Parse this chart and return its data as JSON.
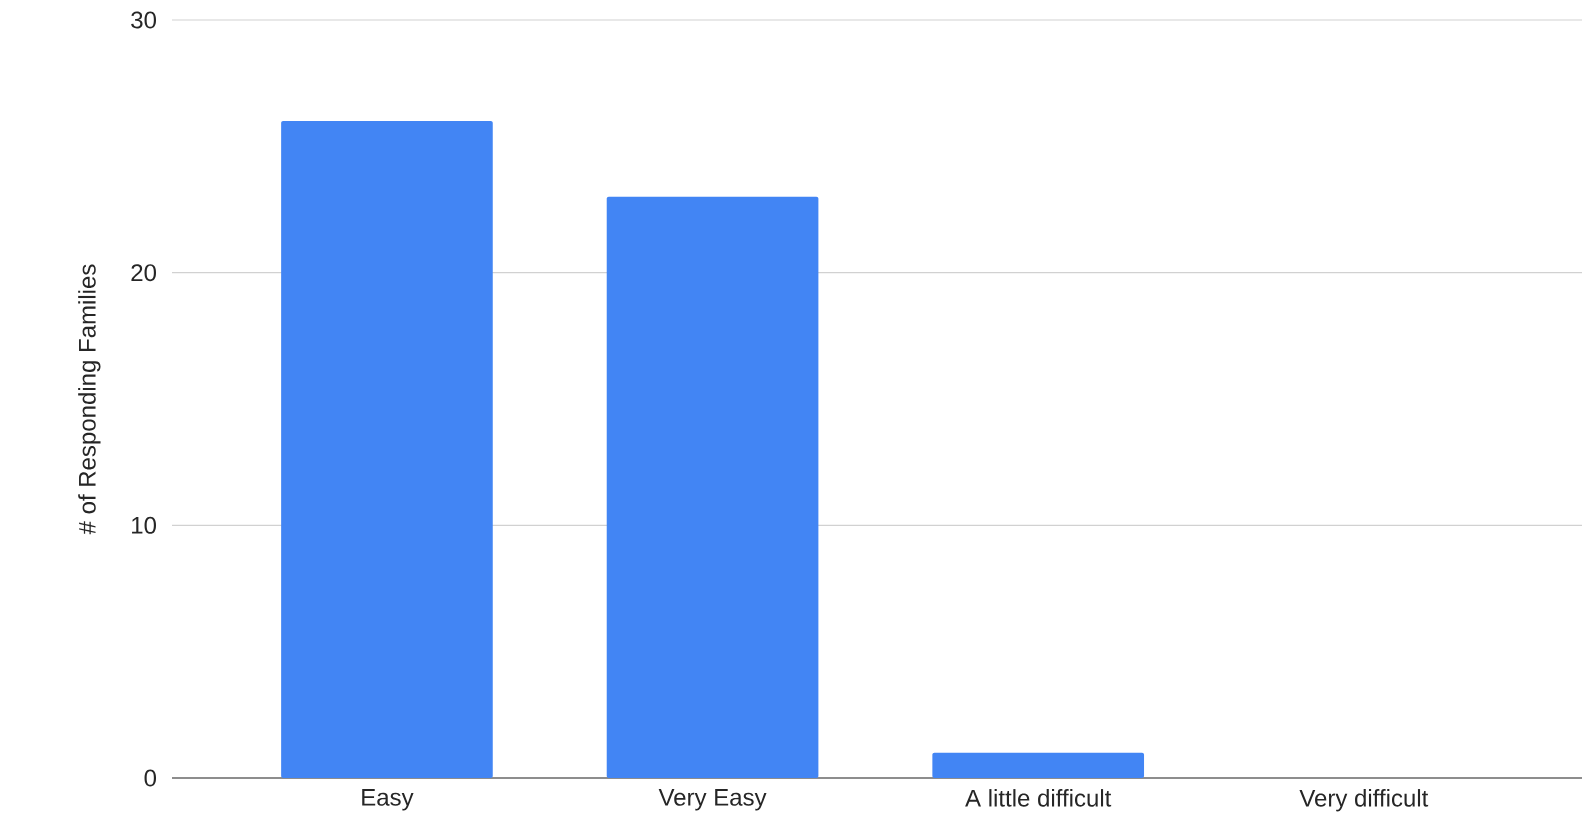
{
  "chart_data": {
    "type": "bar",
    "ylabel": "# of Responding Families",
    "categories": [
      "Easy",
      "Very Easy",
      "A little difficult",
      "Very difficult"
    ],
    "values": [
      26,
      23,
      1,
      0
    ],
    "color": "#4285f4",
    "ylim": [
      0,
      30
    ],
    "yticks": [
      0,
      10,
      20,
      30
    ],
    "grid": "y"
  }
}
